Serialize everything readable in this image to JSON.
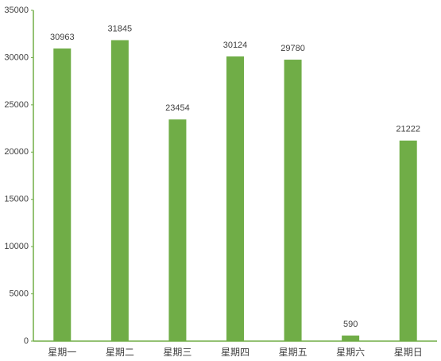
{
  "chart_data": {
    "type": "bar",
    "categories": [
      "星期一",
      "星期二",
      "星期三",
      "星期四",
      "星期五",
      "星期六",
      "星期日"
    ],
    "values": [
      30963,
      31845,
      23454,
      30124,
      29780,
      590,
      21222
    ],
    "color": "#70ad47",
    "ylim": [
      0,
      35000
    ],
    "yticks": [
      0,
      5000,
      10000,
      15000,
      20000,
      25000,
      30000,
      35000
    ]
  }
}
